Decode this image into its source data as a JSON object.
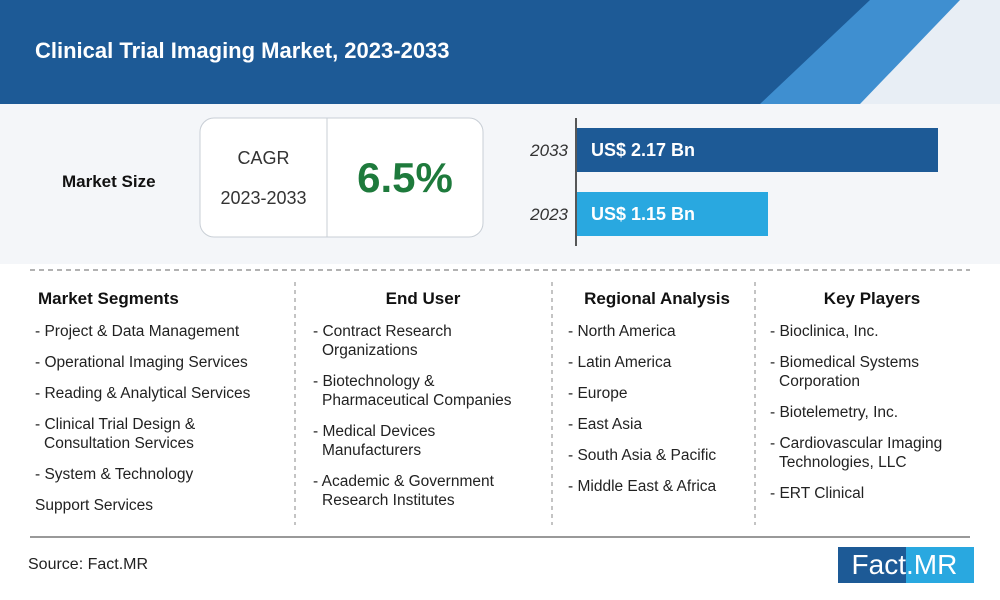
{
  "header": {
    "title": "Clinical Trial Imaging Market, 2023-2033"
  },
  "market_size": {
    "label": "Market Size",
    "cagr_label": "CAGR",
    "cagr_period": "2023-2033",
    "cagr": "6.5%",
    "bars": [
      {
        "year": "2033",
        "label": "US$ 2.17 Bn",
        "value": 2.17,
        "color": "#1d5a96"
      },
      {
        "year": "2023",
        "label": "US$ 1.15 Bn",
        "value": 1.15,
        "color": "#29a8e0"
      }
    ]
  },
  "columns": [
    {
      "heading": "Market Segments",
      "items": [
        [
          "- Project & Data Management"
        ],
        [
          "- Operational Imaging Services"
        ],
        [
          "- Reading & Analytical Services"
        ],
        [
          "- Clinical Trial Design &",
          "Consultation Services"
        ],
        [
          "- System & Technology"
        ],
        [
          "Support Services"
        ]
      ]
    },
    {
      "heading": "End User",
      "items": [
        [
          "- Contract Research",
          "Organizations"
        ],
        [
          "- Biotechnology &",
          "Pharmaceutical Companies"
        ],
        [
          "- Medical Devices",
          "Manufacturers"
        ],
        [
          "- Academic & Government",
          "Research Institutes"
        ]
      ]
    },
    {
      "heading": "Regional Analysis",
      "items": [
        [
          "- North America"
        ],
        [
          "- Latin America"
        ],
        [
          "- Europe"
        ],
        [
          "- East Asia"
        ],
        [
          "- South Asia & Pacific"
        ],
        [
          "- Middle East & Africa"
        ]
      ]
    },
    {
      "heading": "Key Players",
      "items": [
        [
          "- Bioclinica, Inc."
        ],
        [
          "- Biomedical Systems",
          "Corporation"
        ],
        [
          "- Biotelemetry, Inc."
        ],
        [
          "- Cardiovascular Imaging",
          "Technologies, LLC"
        ],
        [
          "- ERT Clinical"
        ]
      ]
    }
  ],
  "footer": {
    "source": "Source: Fact.MR",
    "logo": [
      "Fact",
      ".MR"
    ]
  }
}
